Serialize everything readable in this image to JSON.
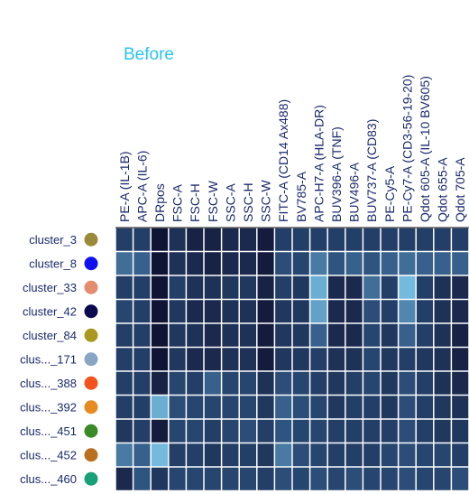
{
  "chart_data": {
    "type": "heatmap",
    "title": "Before",
    "title_color": "#29c5f0",
    "xlabel": "",
    "ylabel": "",
    "columns": [
      "PE-A (IL-1B)",
      "APC-A (IL-6)",
      "DRpos",
      "FSC-A",
      "FSC-H",
      "FSC-W",
      "SSC-A",
      "SSC-H",
      "SSC-W",
      "FITC-A (CD14 Ax488)",
      "BV785-A",
      "APC-H7-A (HLA-DR)",
      "BUV396-A (TNF)",
      "BUV496-A",
      "BUV737-A (CD83)",
      "PE-Cy5-A",
      "PE-Cy7-A (CD3-56-19-20)",
      "Qdot 605-A (IL-10 BV605)",
      "Qdot 655-A",
      "Qdot 705-A"
    ],
    "rows": [
      {
        "label": "cluster_3",
        "dot_color": "#9b8a3a"
      },
      {
        "label": "cluster_8",
        "dot_color": "#1010f0"
      },
      {
        "label": "cluster_33",
        "dot_color": "#e38c6e"
      },
      {
        "label": "cluster_42",
        "dot_color": "#0a0a4e"
      },
      {
        "label": "cluster_84",
        "dot_color": "#a8981e"
      },
      {
        "label": "clus..._171",
        "dot_color": "#88a6c4"
      },
      {
        "label": "clus..._388",
        "dot_color": "#f5521e"
      },
      {
        "label": "clus..._392",
        "dot_color": "#e68a22"
      },
      {
        "label": "clus..._451",
        "dot_color": "#3a8a28"
      },
      {
        "label": "clus..._452",
        "dot_color": "#b8701e"
      },
      {
        "label": "clus..._460",
        "dot_color": "#18a078"
      }
    ],
    "values": [
      [
        0.35,
        0.35,
        0.05,
        0.25,
        0.15,
        0.15,
        0.2,
        0.2,
        0.1,
        0.35,
        0.35,
        0.35,
        0.35,
        0.35,
        0.35,
        0.35,
        0.35,
        0.35,
        0.35,
        0.35
      ],
      [
        0.6,
        0.55,
        0.05,
        0.25,
        0.2,
        0.15,
        0.2,
        0.2,
        0.1,
        0.45,
        0.4,
        0.65,
        0.5,
        0.55,
        0.5,
        0.55,
        0.6,
        0.55,
        0.55,
        0.55
      ],
      [
        0.35,
        0.35,
        0.05,
        0.35,
        0.25,
        0.25,
        0.3,
        0.3,
        0.15,
        0.35,
        0.3,
        0.85,
        0.2,
        0.2,
        0.6,
        0.35,
        0.9,
        0.35,
        0.25,
        0.2
      ],
      [
        0.4,
        0.35,
        0.05,
        0.3,
        0.2,
        0.2,
        0.25,
        0.25,
        0.1,
        0.3,
        0.3,
        0.8,
        0.2,
        0.2,
        0.45,
        0.35,
        0.7,
        0.35,
        0.25,
        0.2
      ],
      [
        0.35,
        0.35,
        0.05,
        0.3,
        0.25,
        0.2,
        0.25,
        0.25,
        0.1,
        0.3,
        0.3,
        0.55,
        0.2,
        0.2,
        0.4,
        0.3,
        0.55,
        0.35,
        0.25,
        0.15
      ],
      [
        0.35,
        0.35,
        0.05,
        0.3,
        0.2,
        0.2,
        0.25,
        0.25,
        0.1,
        0.3,
        0.3,
        0.35,
        0.25,
        0.25,
        0.4,
        0.3,
        0.35,
        0.3,
        0.25,
        0.15
      ],
      [
        0.35,
        0.35,
        0.15,
        0.4,
        0.35,
        0.55,
        0.4,
        0.4,
        0.25,
        0.45,
        0.4,
        0.35,
        0.3,
        0.35,
        0.4,
        0.3,
        0.45,
        0.35,
        0.25,
        0.2
      ],
      [
        0.35,
        0.35,
        0.85,
        0.45,
        0.4,
        0.4,
        0.4,
        0.4,
        0.3,
        0.55,
        0.45,
        0.4,
        0.3,
        0.35,
        0.35,
        0.3,
        0.45,
        0.35,
        0.3,
        0.25
      ],
      [
        0.3,
        0.35,
        0.1,
        0.4,
        0.4,
        0.35,
        0.4,
        0.45,
        0.35,
        0.5,
        0.4,
        0.4,
        0.35,
        0.35,
        0.35,
        0.35,
        0.45,
        0.35,
        0.3,
        0.3
      ],
      [
        0.65,
        0.55,
        0.9,
        0.35,
        0.35,
        0.3,
        0.35,
        0.35,
        0.3,
        0.65,
        0.45,
        0.4,
        0.35,
        0.35,
        0.35,
        0.4,
        0.45,
        0.4,
        0.4,
        0.35
      ],
      [
        0.2,
        0.5,
        0.3,
        0.4,
        0.4,
        0.4,
        0.4,
        0.4,
        0.35,
        0.45,
        0.4,
        0.45,
        0.4,
        0.45,
        0.4,
        0.4,
        0.45,
        0.4,
        0.4,
        0.45
      ]
    ],
    "color_scale": {
      "low": "#0d0d2b",
      "mid": "#2e5480",
      "high": "#86d4f5"
    },
    "grid": true,
    "legend": "none"
  }
}
